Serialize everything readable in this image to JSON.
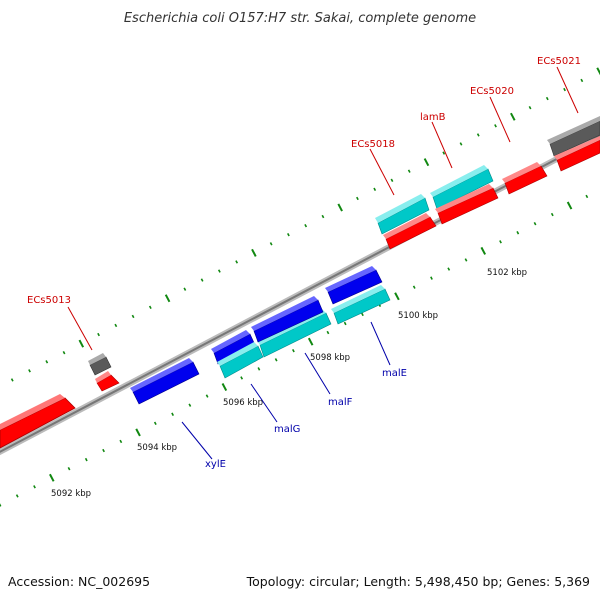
{
  "title": "Escherichia coli O157:H7 str. Sakai, complete genome",
  "footer": {
    "accession": "Accession: NC_002695",
    "summary": "Topology: circular; Length: 5,498,450 bp; Genes: 5,369"
  },
  "colors": {
    "forward_cds": "#ff0000",
    "forward_other": "#5a5a5a",
    "reverse_cds": "#0000ee",
    "reverse_other": "#00c8c8",
    "backbone": "#888888",
    "tick": "#118811",
    "forward_label": "#cc0000",
    "reverse_label": "#0000aa"
  },
  "scale_labels": [
    "5092 kbp",
    "5094 kbp",
    "5096 kbp",
    "5098 kbp",
    "5100 kbp",
    "5102 kbp"
  ],
  "genes": [
    {
      "label": "ECs5013",
      "strand": "forward"
    },
    {
      "label": "ECs5018",
      "strand": "forward"
    },
    {
      "label": "lamB",
      "strand": "forward"
    },
    {
      "label": "ECs5020",
      "strand": "forward"
    },
    {
      "label": "ECs5021",
      "strand": "forward"
    },
    {
      "label": "xylE",
      "strand": "reverse"
    },
    {
      "label": "malG",
      "strand": "reverse"
    },
    {
      "label": "malF",
      "strand": "reverse"
    },
    {
      "label": "malE",
      "strand": "reverse"
    }
  ]
}
